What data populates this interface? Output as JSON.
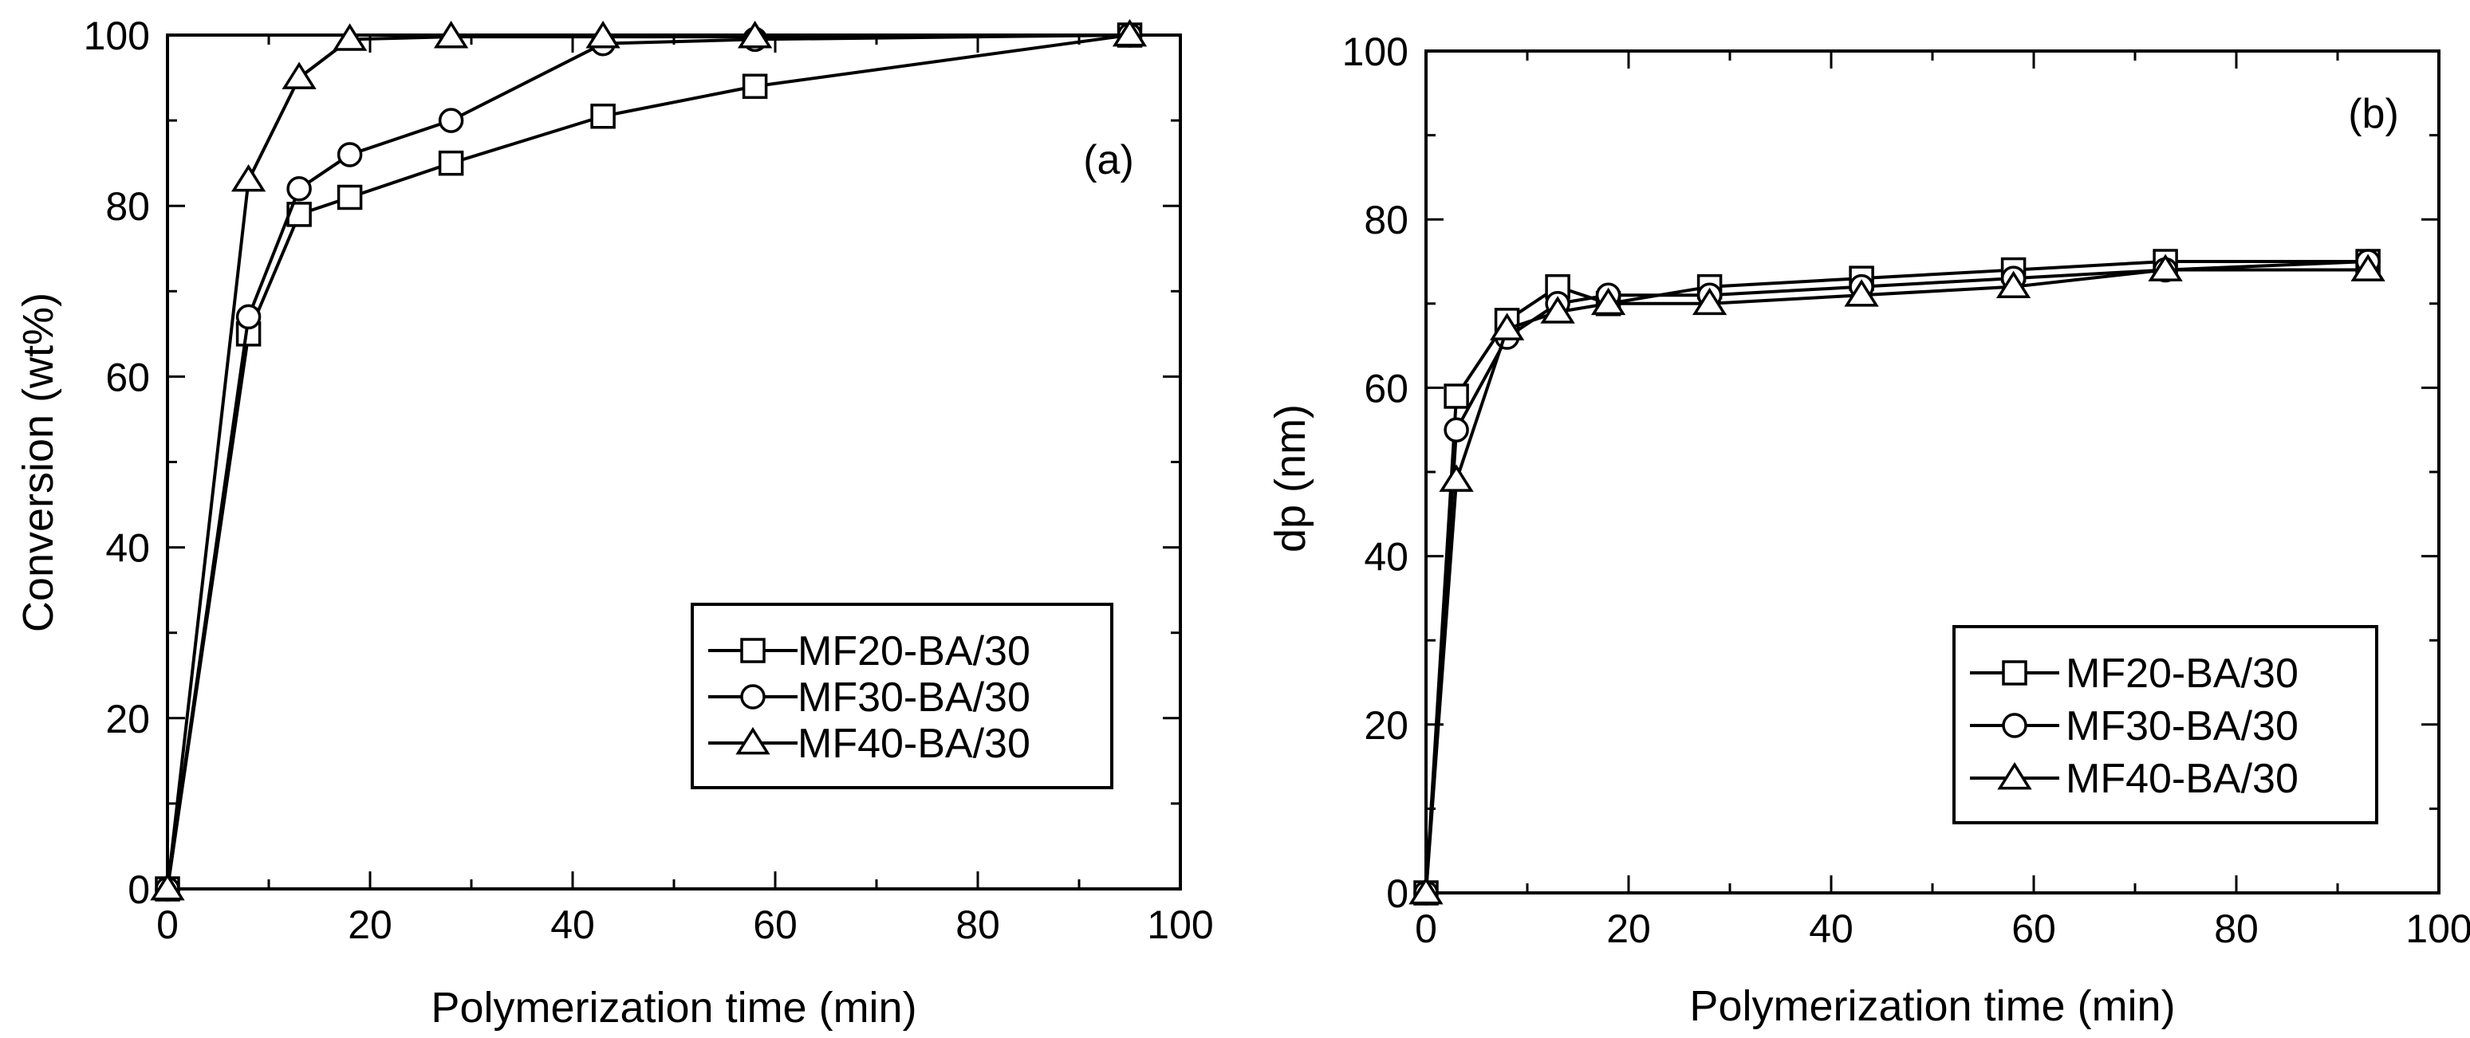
{
  "chart_data": [
    {
      "type": "line",
      "panel_label": "(a)",
      "xlabel": "Polymerization time (min)",
      "ylabel": "Conversion (wt%)",
      "xlim": [
        0,
        100
      ],
      "ylim": [
        0,
        100
      ],
      "xticks": [
        0,
        20,
        40,
        60,
        80,
        100
      ],
      "yticks": [
        0,
        20,
        40,
        60,
        80,
        100
      ],
      "legend_position": "lower-right",
      "series": [
        {
          "name": "MF20-BA/30",
          "marker": "square",
          "x": [
            0,
            8,
            13,
            18,
            28,
            43,
            58,
            95
          ],
          "y": [
            0,
            65,
            79,
            81,
            85,
            90.5,
            94,
            100
          ]
        },
        {
          "name": "MF30-BA/30",
          "marker": "circle",
          "x": [
            0,
            8,
            13,
            18,
            28,
            43,
            58,
            95
          ],
          "y": [
            0,
            67,
            82,
            86,
            90,
            99,
            99.5,
            100
          ]
        },
        {
          "name": "MF40-BA/30",
          "marker": "triangle",
          "x": [
            0,
            8,
            13,
            18,
            28,
            43,
            58,
            95
          ],
          "y": [
            0,
            83,
            95,
            99.5,
            99.8,
            99.8,
            99.8,
            100
          ]
        }
      ]
    },
    {
      "type": "line",
      "panel_label": "(b)",
      "xlabel": "Polymerization time (min)",
      "ylabel": "dp (nm)",
      "xlim": [
        0,
        100
      ],
      "ylim": [
        0,
        100
      ],
      "xticks": [
        0,
        20,
        40,
        60,
        80,
        100
      ],
      "yticks": [
        0,
        20,
        40,
        60,
        80,
        100
      ],
      "legend_position": "lower-right",
      "series": [
        {
          "name": "MF20-BA/30",
          "marker": "square",
          "x": [
            0,
            3,
            8,
            13,
            18,
            28,
            43,
            58,
            73,
            93
          ],
          "y": [
            0,
            59,
            68,
            72,
            70,
            72,
            73,
            74,
            75,
            75
          ]
        },
        {
          "name": "MF30-BA/30",
          "marker": "circle",
          "x": [
            0,
            3,
            8,
            13,
            18,
            28,
            43,
            58,
            73,
            93
          ],
          "y": [
            0,
            55,
            66,
            70,
            71,
            71,
            72,
            73,
            74,
            75
          ]
        },
        {
          "name": "MF40-BA/30",
          "marker": "triangle",
          "x": [
            0,
            3,
            8,
            13,
            18,
            28,
            43,
            58,
            73,
            93
          ],
          "y": [
            0,
            49,
            67,
            69,
            70,
            70,
            71,
            72,
            74,
            74
          ]
        }
      ]
    }
  ]
}
